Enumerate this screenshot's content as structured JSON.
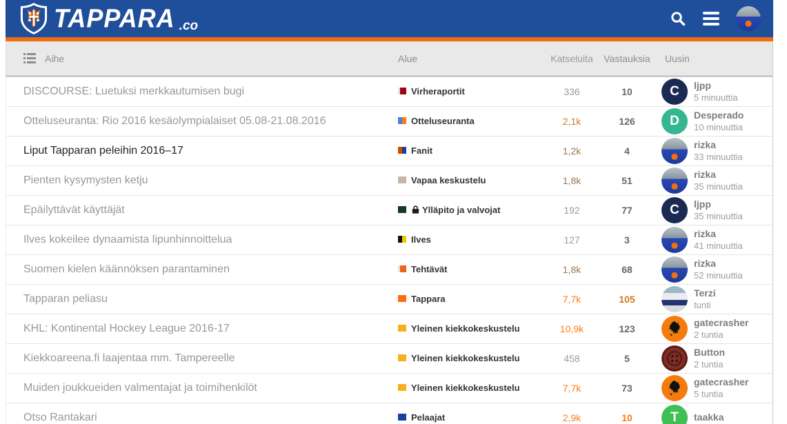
{
  "header": {
    "brand": "TAPPARA",
    "brand_suffix": ".co",
    "colors": {
      "bar": "#1f4e9a",
      "accent": "#ee6c0e"
    }
  },
  "columns": {
    "topic": "Aihe",
    "category": "Alue",
    "views": "Katseluita",
    "replies": "Vastauksia",
    "latest": "Uusin"
  },
  "colors": {
    "heat_low": "#9b764f",
    "heat_med": "#cf7721",
    "heat_high": "#fe7a15"
  },
  "rows": [
    {
      "title": "DISCOURSE: Luetuksi merkkautumisen bugi",
      "unread": false,
      "category": {
        "label": "Virheraportit",
        "locked": false,
        "swatches": [
          {
            "color": "#e9e2d4",
            "w": 3
          },
          {
            "color": "#9c0418",
            "w": 9
          }
        ]
      },
      "views": {
        "text": "336",
        "heat": "none"
      },
      "replies": {
        "text": "10",
        "heat": "none"
      },
      "poster": {
        "name": "ljpp",
        "time": "5 minuuttia",
        "avatar": {
          "kind": "letter",
          "letter": "C",
          "bg": "#1b2a52"
        }
      }
    },
    {
      "title": "Otteluseuranta: Rio 2016 kesäolympialaiset 05.08-21.08.2016",
      "unread": false,
      "category": {
        "label": "Otteluseuranta",
        "locked": false,
        "swatches": [
          {
            "color": "#4e7fdc",
            "w": 6
          },
          {
            "color": "#f97b17",
            "w": 6
          }
        ]
      },
      "views": {
        "text": "2,1k",
        "heat": "med"
      },
      "replies": {
        "text": "126",
        "heat": "none"
      },
      "poster": {
        "name": "Desperado",
        "time": "10 minuuttia",
        "avatar": {
          "kind": "letter",
          "letter": "D",
          "bg": "#36b690"
        }
      }
    },
    {
      "title": "Liput Tapparan peleihin 2016–17",
      "unread": true,
      "category": {
        "label": "Fanit",
        "locked": false,
        "swatches": [
          {
            "color": "#cc4d01",
            "w": 6
          },
          {
            "color": "#1e3f8f",
            "w": 6
          }
        ]
      },
      "views": {
        "text": "1,2k",
        "heat": "low"
      },
      "replies": {
        "text": "4",
        "heat": "none"
      },
      "poster": {
        "name": "rizka",
        "time": "33 minuuttia",
        "avatar": {
          "kind": "photo",
          "style": "av-rizka"
        }
      }
    },
    {
      "title": "Pienten kysymysten ketju",
      "unread": false,
      "category": {
        "label": "Vapaa keskustelu",
        "locked": false,
        "swatches": [
          {
            "color": "#c2b7a1",
            "w": 12
          }
        ]
      },
      "views": {
        "text": "1,8k",
        "heat": "low"
      },
      "replies": {
        "text": "51",
        "heat": "none"
      },
      "poster": {
        "name": "rizka",
        "time": "35 minuuttia",
        "avatar": {
          "kind": "photo",
          "style": "av-rizka"
        }
      }
    },
    {
      "title": "Epäilyttävät käyttäjät",
      "unread": false,
      "category": {
        "label": "Ylläpito ja valvojat",
        "locked": true,
        "swatches": [
          {
            "color": "#133a20",
            "w": 12
          }
        ]
      },
      "views": {
        "text": "192",
        "heat": "none"
      },
      "replies": {
        "text": "77",
        "heat": "none"
      },
      "poster": {
        "name": "ljpp",
        "time": "35 minuuttia",
        "avatar": {
          "kind": "letter",
          "letter": "C",
          "bg": "#1b2a52"
        }
      }
    },
    {
      "title": "Ilves kokeilee dynaamista lipunhinnoittelua",
      "unread": false,
      "category": {
        "label": "Ilves",
        "locked": false,
        "swatches": [
          {
            "color": "#111111",
            "w": 6
          },
          {
            "color": "#f2c900",
            "w": 6
          }
        ]
      },
      "views": {
        "text": "127",
        "heat": "none"
      },
      "replies": {
        "text": "3",
        "heat": "none"
      },
      "poster": {
        "name": "rizka",
        "time": "41 minuuttia",
        "avatar": {
          "kind": "photo",
          "style": "av-rizka"
        }
      }
    },
    {
      "title": "Suomen kielen käännöksen parantaminen",
      "unread": false,
      "category": {
        "label": "Tehtävät",
        "locked": false,
        "swatches": [
          {
            "color": "#ece3cd",
            "w": 3
          },
          {
            "color": "#ea6519",
            "w": 9
          }
        ]
      },
      "views": {
        "text": "1,8k",
        "heat": "low"
      },
      "replies": {
        "text": "68",
        "heat": "none"
      },
      "poster": {
        "name": "rizka",
        "time": "52 minuuttia",
        "avatar": {
          "kind": "photo",
          "style": "av-rizka"
        }
      }
    },
    {
      "title": "Tapparan peliasu",
      "unread": false,
      "category": {
        "label": "Tappara",
        "locked": false,
        "swatches": [
          {
            "color": "#fd6e0e",
            "w": 12
          }
        ]
      },
      "views": {
        "text": "7,7k",
        "heat": "high"
      },
      "replies": {
        "text": "105",
        "heat": "med"
      },
      "poster": {
        "name": "Terzi",
        "time": "tunti",
        "avatar": {
          "kind": "photo",
          "style": "av-terzi"
        }
      }
    },
    {
      "title": "KHL: Kontinental Hockey League 2016-17",
      "unread": false,
      "category": {
        "label": "Yleinen kiekkokeskustelu",
        "locked": false,
        "swatches": [
          {
            "color": "#f7b01b",
            "w": 12
          }
        ]
      },
      "views": {
        "text": "10,9k",
        "heat": "high"
      },
      "replies": {
        "text": "123",
        "heat": "none"
      },
      "poster": {
        "name": "gatecrasher",
        "time": "2 tuntia",
        "avatar": {
          "kind": "svg",
          "style": "av-gatecrasher",
          "svg": "lion"
        }
      }
    },
    {
      "title": "Kiekkoareena.fi laajentaa mm. Tampereelle",
      "unread": false,
      "category": {
        "label": "Yleinen kiekkokeskustelu",
        "locked": false,
        "swatches": [
          {
            "color": "#f7b01b",
            "w": 12
          }
        ]
      },
      "views": {
        "text": "458",
        "heat": "none"
      },
      "replies": {
        "text": "5",
        "heat": "none"
      },
      "poster": {
        "name": "Button",
        "time": "2 tuntia",
        "avatar": {
          "kind": "svg",
          "style": "av-button",
          "svg": "button"
        }
      }
    },
    {
      "title": "Muiden joukkueiden valmentajat ja toimihenkilöt",
      "unread": false,
      "category": {
        "label": "Yleinen kiekkokeskustelu",
        "locked": false,
        "swatches": [
          {
            "color": "#f7b01b",
            "w": 12
          }
        ]
      },
      "views": {
        "text": "7,7k",
        "heat": "high"
      },
      "replies": {
        "text": "73",
        "heat": "none"
      },
      "poster": {
        "name": "gatecrasher",
        "time": "5 tuntia",
        "avatar": {
          "kind": "svg",
          "style": "av-gatecrasher",
          "svg": "lion"
        }
      }
    },
    {
      "title": "Otso Rantakari",
      "unread": false,
      "category": {
        "label": "Pelaajat",
        "locked": false,
        "swatches": [
          {
            "color": "#17429e",
            "w": 12
          }
        ]
      },
      "views": {
        "text": "2,9k",
        "heat": "high"
      },
      "replies": {
        "text": "10",
        "heat": "high"
      },
      "poster": {
        "name": "taakka",
        "time": "",
        "avatar": {
          "kind": "letter",
          "letter": "T",
          "bg": "#3fbf54"
        }
      }
    }
  ]
}
